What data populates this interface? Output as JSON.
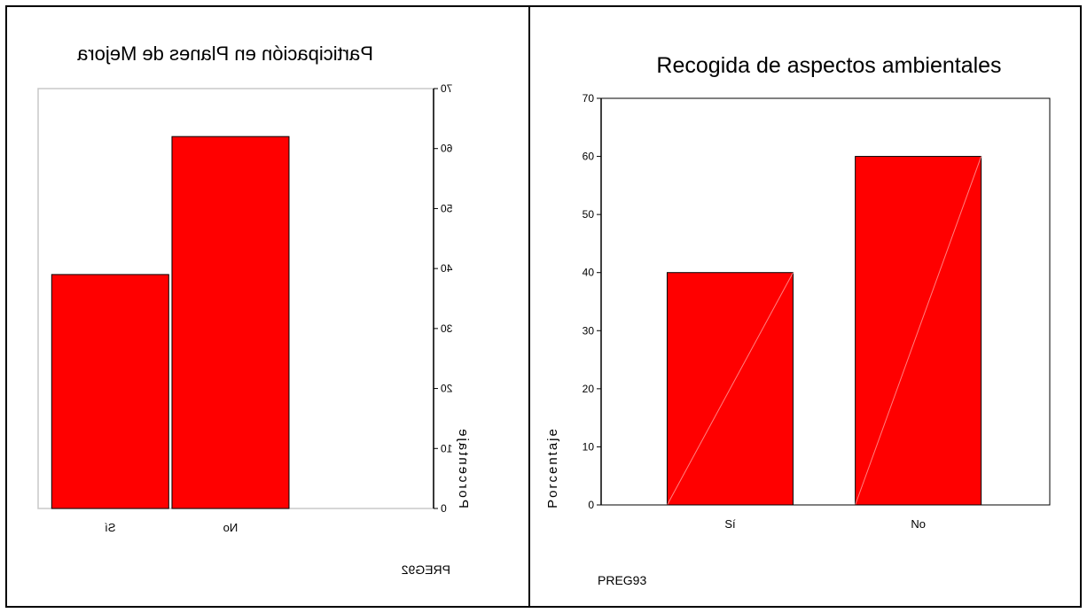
{
  "chart_data": [
    {
      "type": "bar",
      "title": "Participación en Planes de Mejora",
      "xlabel": "PREG92",
      "ylabel": "Porcentaje",
      "categories": [
        "No",
        "Sí"
      ],
      "values": [
        62,
        39
      ],
      "ylim": [
        0,
        70
      ],
      "yticks": [
        0,
        10,
        20,
        30,
        40,
        50,
        60,
        70
      ],
      "mirrored": true,
      "bar_color": "#ff0000",
      "legend": "none",
      "grid": false
    },
    {
      "type": "bar",
      "title": "Recogida de aspectos ambientales",
      "xlabel": "PREG93",
      "ylabel": "Porcentaje",
      "categories": [
        "Sí",
        "No"
      ],
      "values": [
        40,
        60
      ],
      "ylim": [
        0,
        70
      ],
      "yticks": [
        0,
        10,
        20,
        30,
        40,
        50,
        60,
        70
      ],
      "mirrored": false,
      "bar_color": "#ff0000",
      "legend": "none",
      "grid": false
    }
  ]
}
